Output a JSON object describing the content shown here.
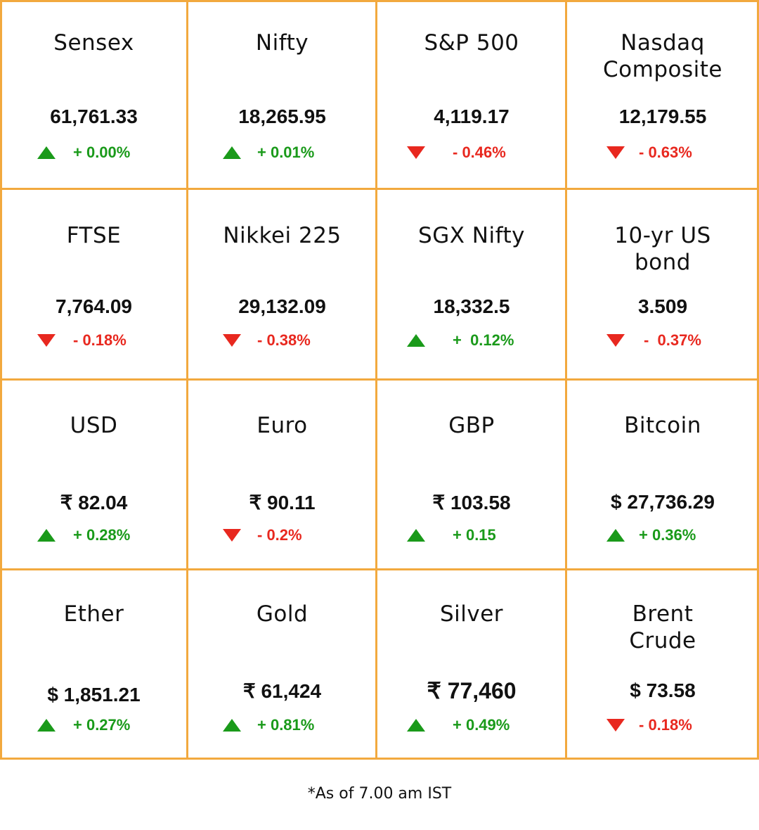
{
  "colors": {
    "border": "#F2A93E",
    "up": "#1a9a1a",
    "down": "#e8281f"
  },
  "cells": [
    {
      "name": "Sensex",
      "value": "61,761.33",
      "change": "+ 0.00%",
      "direction": "up"
    },
    {
      "name": "Nifty",
      "value": "18,265.95",
      "change": "+ 0.01%",
      "direction": "up"
    },
    {
      "name": "S&P 500",
      "value": "4,119.17",
      "change": "- 0.46%",
      "direction": "down"
    },
    {
      "name": "Nasdaq Composite",
      "value": "12,179.55",
      "change": "- 0.63%",
      "direction": "down"
    },
    {
      "name": "FTSE",
      "value": "7,764.09",
      "change": "- 0.18%",
      "direction": "down"
    },
    {
      "name": "Nikkei 225",
      "value": "29,132.09",
      "change": "- 0.38%",
      "direction": "down"
    },
    {
      "name": "SGX Nifty",
      "value": "18,332.5",
      "change": "+  0.12%",
      "direction": "up"
    },
    {
      "name": "10-yr US bond",
      "value": "3.509",
      "change": "-  0.37%",
      "direction": "down"
    },
    {
      "name": "USD",
      "value": "₹ 82.04",
      "change": "+ 0.28%",
      "direction": "up"
    },
    {
      "name": "Euro",
      "value": "₹ 90.11",
      "change": "- 0.2%",
      "direction": "down"
    },
    {
      "name": "GBP",
      "value": "₹ 103.58",
      "change": "+ 0.15",
      "direction": "up"
    },
    {
      "name": "Bitcoin",
      "value": "$ 27,736.29",
      "change": "+ 0.36%",
      "direction": "up"
    },
    {
      "name": "Ether",
      "value": "$ 1,851.21",
      "change": "+ 0.27%",
      "direction": "up"
    },
    {
      "name": "Gold",
      "value": "₹ 61,424",
      "change": "+ 0.81%",
      "direction": "up"
    },
    {
      "name": "Silver",
      "value": "₹ 77,460",
      "change": "+ 0.49%",
      "direction": "up"
    },
    {
      "name": "Brent Crude",
      "value": "$ 73.58",
      "change": "- 0.18%",
      "direction": "down"
    }
  ],
  "footnote": "*As of 7.00 am IST"
}
